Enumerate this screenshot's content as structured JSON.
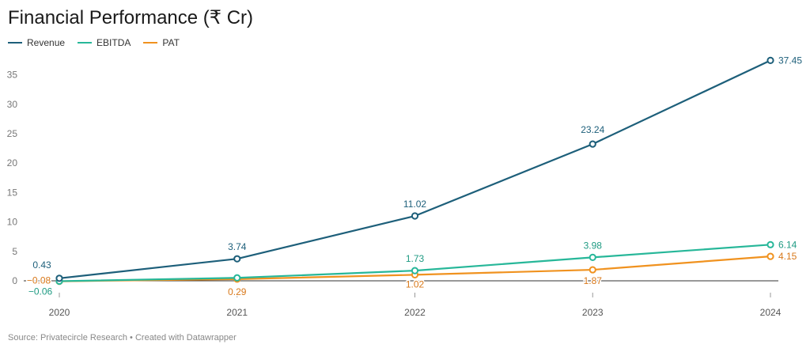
{
  "title": "Financial Performance (₹ Cr)",
  "source": "Source: Privatecircle Research • Created with Datawrapper",
  "chart_data": {
    "type": "line",
    "title": "Financial Performance (₹ Cr)",
    "x": [
      "2020",
      "2021",
      "2022",
      "2023",
      "2024"
    ],
    "ylim": [
      -2,
      38
    ],
    "yticks": [
      0,
      5,
      10,
      15,
      20,
      25,
      30,
      35
    ],
    "grid": false,
    "legend": "top-left",
    "series": [
      {
        "name": "Revenue",
        "color": "#1d5f7a",
        "values": [
          0.43,
          3.74,
          11.02,
          23.24,
          37.45
        ],
        "labels": [
          "0.43",
          "3.74",
          "11.02",
          "23.24",
          "37.45"
        ]
      },
      {
        "name": "EBITDA",
        "color": "#27b799",
        "values": [
          -0.06,
          0.5,
          1.73,
          3.98,
          6.14
        ],
        "labels": [
          "−0.06",
          "",
          "1.73",
          "3.98",
          "6.14"
        ]
      },
      {
        "name": "PAT",
        "color": "#f0921f",
        "values": [
          -0.08,
          0.29,
          1.02,
          1.87,
          4.15
        ],
        "labels": [
          "−0.08",
          "0.29",
          "1.02",
          "1.87",
          "4.15"
        ]
      }
    ]
  }
}
